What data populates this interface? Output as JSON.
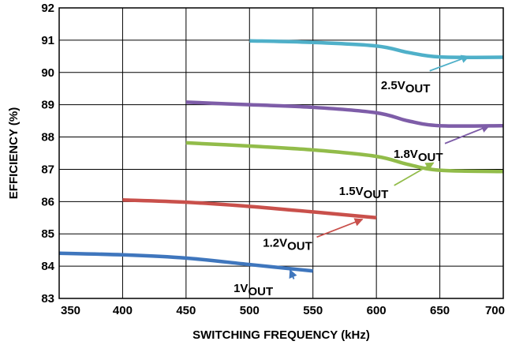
{
  "chart_data": {
    "type": "line",
    "xlabel": "SWITCHING FREQUENCY (kHz)",
    "ylabel": "EFFICIENCY (%)",
    "xlim": [
      350,
      700
    ],
    "ylim": [
      83,
      92
    ],
    "xticks": [
      "350",
      "400",
      "450",
      "500",
      "550",
      "600",
      "650",
      "700"
    ],
    "yticks": [
      "83",
      "84",
      "85",
      "86",
      "87",
      "88",
      "89",
      "90",
      "91",
      "92"
    ],
    "grid": true,
    "series": [
      {
        "name": "1V",
        "sub": "OUT",
        "color": "#3f76bd",
        "x": [
          350,
          400,
          450,
          500,
          550
        ],
        "y": [
          84.4,
          84.35,
          84.25,
          84.05,
          83.85
        ],
        "arrow_from": [
          535,
          83.6
        ],
        "arrow_to": [
          532,
          83.88
        ],
        "label_at": [
          503,
          83.2
        ]
      },
      {
        "name": "1.2V",
        "sub": "OUT",
        "color": "#c9504b",
        "x": [
          400,
          450,
          500,
          550,
          600
        ],
        "y": [
          86.05,
          85.98,
          85.85,
          85.68,
          85.5
        ],
        "arrow_from": [
          553,
          84.9
        ],
        "arrow_to": [
          589,
          85.45
        ],
        "label_at": [
          530,
          84.6
        ]
      },
      {
        "name": "1.5V",
        "sub": "OUT",
        "color": "#92bc4a",
        "x": [
          450,
          500,
          550,
          600,
          625,
          650,
          700
        ],
        "y": [
          87.82,
          87.72,
          87.6,
          87.4,
          87.15,
          86.97,
          86.93
        ],
        "arrow_from": [
          614,
          86.5
        ],
        "arrow_to": [
          645,
          87.2
        ],
        "label_at": [
          590,
          86.2
        ]
      },
      {
        "name": "1.8V",
        "sub": "OUT",
        "color": "#7e5da8",
        "x": [
          450,
          500,
          550,
          600,
          625,
          650,
          700
        ],
        "y": [
          89.08,
          89.0,
          88.92,
          88.75,
          88.5,
          88.35,
          88.35
        ],
        "arrow_from": [
          654,
          87.8
        ],
        "arrow_to": [
          689,
          88.35
        ],
        "label_at": [
          633,
          87.35
        ]
      },
      {
        "name": "2.5V",
        "sub": "OUT",
        "color": "#4fb0c9",
        "x": [
          500,
          550,
          600,
          625,
          650,
          700
        ],
        "y": [
          90.98,
          90.93,
          90.82,
          90.62,
          90.48,
          90.47
        ],
        "arrow_from": [
          642,
          90.05
        ],
        "arrow_to": [
          673,
          90.5
        ],
        "label_at": [
          623,
          89.48
        ]
      }
    ]
  }
}
